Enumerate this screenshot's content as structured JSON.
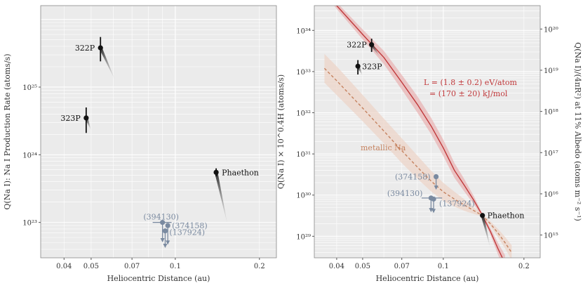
{
  "chart_data": [
    {
      "type": "scatter",
      "xlabel": "Heliocentric Distance (au)",
      "ylabel": "Q(Na I): Na I Production Rate (atoms/s)",
      "xscale": "log",
      "yscale": "log",
      "xlim": [
        0.033,
        0.23
      ],
      "ylim": [
        3e+22,
        1.6e+26
      ],
      "xticks": [
        0.04,
        0.05,
        0.07,
        0.1,
        0.2
      ],
      "xtick_labels": [
        "0.04",
        "0.05",
        "0.07",
        "0.1",
        "0.2"
      ],
      "yticks": [
        1e+23,
        1e+24,
        1e+25
      ],
      "ytick_labels": [
        "10²³",
        "10²⁴",
        "10²⁵"
      ],
      "grid": true,
      "points": [
        {
          "name": "322P",
          "x": 0.054,
          "y": 3.8e+25,
          "ylo": 2.4e+25,
          "yhi": 5.5e+25,
          "tail_x": 0.061,
          "tail_y": 1.25e+25
        },
        {
          "name": "323P",
          "x": 0.048,
          "y": 3.5e+24,
          "ylo": 2.1e+24,
          "yhi": 5e+24,
          "tail_x": 0.05,
          "tail_y": 2.3e+24
        },
        {
          "name": "Phaethon",
          "x": 0.14,
          "y": 5.5e+23,
          "ylo": 4.8e+23,
          "yhi": 6.3e+23,
          "tail_x": 0.154,
          "tail_y": 9e+22
        }
      ],
      "upper_limits": [
        {
          "name": "(394130)",
          "x": 0.09,
          "y": 1e+23,
          "xlo": 0.083,
          "xhi": 0.097,
          "ytip": 5.2e+22
        },
        {
          "name": "(374158)",
          "x": 0.094,
          "y": 9e+22,
          "ytip": 4.8e+22
        },
        {
          "name": "(137924)",
          "x": 0.092,
          "y": 7.5e+22,
          "ytip": 4.3e+22
        }
      ]
    },
    {
      "type": "line",
      "xlabel": "Heliocentric Distance (au)",
      "ylabel": "Q(Na I) × 10^0.4H (atoms/s)",
      "y2label": "Q(Na I)/(4πR²) at 11% Albedo (atoms m⁻² s⁻¹)",
      "xscale": "log",
      "yscale": "log",
      "xlim": [
        0.033,
        0.23
      ],
      "ylim": [
        3e+28,
        4e+34
      ],
      "xticks": [
        0.04,
        0.05,
        0.07,
        0.1,
        0.2
      ],
      "xtick_labels": [
        "0.04",
        "0.05",
        "0.07",
        "0.1",
        "0.2"
      ],
      "yticks": [
        1e+29,
        1e+30,
        1e+31,
        1e+32,
        1e+33,
        1e+34
      ],
      "ytick_labels": [
        "10²⁹",
        "10³⁰",
        "10³¹",
        "10³²",
        "10³³",
        "10³⁴"
      ],
      "y2ticks": [
        1000000000000000.0,
        1e+16,
        1e+17,
        1e+18,
        1e+19,
        1e+20
      ],
      "y2tick_labels": [
        "10¹⁵",
        "10¹⁶",
        "10¹⁷",
        "10¹⁸",
        "10¹⁹",
        "10²⁰"
      ],
      "grid": true,
      "points": [
        {
          "name": "322P",
          "x": 0.054,
          "y": 4.5e+33,
          "ylo": 3e+33,
          "yhi": 6.3e+33,
          "tail_x": 0.058,
          "tail_y": 2.3e+33
        },
        {
          "name": "323P",
          "x": 0.048,
          "y": 1.35e+33,
          "ylo": 8.5e+32,
          "yhi": 1.9e+33,
          "tail_x": 0.05,
          "tail_y": 8e+32
        },
        {
          "name": "Phaethon",
          "x": 0.14,
          "y": 3.2e+29,
          "ylo": 2.8e+29,
          "yhi": 3.6e+29,
          "tail_x": 0.15,
          "tail_y": 5e+28
        }
      ],
      "upper_limits": [
        {
          "name": "(374158)",
          "x": 0.094,
          "y": 2.8e+30,
          "ytip": 1.4e+30
        },
        {
          "name": "(394130)",
          "x": 0.09,
          "y": 8.5e+29,
          "xlo": 0.083,
          "xhi": 0.099,
          "ytip": 4e+29
        },
        {
          "name": "(137924)",
          "x": 0.092,
          "y": 8e+29,
          "ytip": 3.8e+29
        }
      ],
      "series": [
        {
          "name": "L = (1.8 ± 0.2) eV/atom = (170 ± 20) kJ/mol",
          "x": [
            0.033,
            0.04,
            0.05,
            0.06,
            0.07,
            0.08,
            0.09,
            0.1,
            0.11,
            0.12,
            0.13,
            0.14,
            0.15,
            0.16,
            0.17
          ],
          "y": [
            1.9e+35,
            4e+34,
            8e+33,
            2.2e+33,
            5.5e+32,
            1.6e+32,
            4.8e+31,
            1.4e+31,
            4e+30,
            1.7e+30,
            7.5e+29,
            3.2e+29,
            1.3e+29,
            5e+28,
            2.2e+28
          ],
          "band_width_dex": [
            0.05,
            0.08,
            0.12,
            0.16,
            0.18,
            0.2,
            0.2,
            0.2,
            0.18,
            0.15,
            0.1,
            0.04,
            0.08,
            0.14,
            0.2
          ]
        },
        {
          "name": "metallic Na",
          "x": [
            0.036,
            0.04,
            0.05,
            0.06,
            0.07,
            0.08,
            0.09,
            0.1,
            0.11,
            0.12,
            0.13,
            0.14,
            0.15,
            0.16,
            0.17,
            0.18
          ],
          "y": [
            1.2e+33,
            6e+32,
            1.3e+32,
            3.6e+31,
            1.2e+31,
            4.8e+30,
            2.2e+30,
            1.2e+30,
            8e+29,
            5.7e+29,
            4.2e+29,
            3.2e+29,
            2e+29,
            1.2e+29,
            7e+28,
            4e+28
          ],
          "band_width_dex": [
            0.35,
            0.35,
            0.32,
            0.3,
            0.3,
            0.28,
            0.25,
            0.22,
            0.18,
            0.14,
            0.08,
            0.03,
            0.06,
            0.1,
            0.14,
            0.18
          ]
        }
      ],
      "annotations": {
        "L_line1": "L = (1.8 ± 0.2) eV/atom",
        "L_line2": "= (170 ± 20) kJ/mol",
        "metallic": "metallic Na"
      }
    }
  ],
  "left_ylabel_text": "Q(Na I): Na I Production Rate (atoms/s)",
  "right_ylabel_text": "Q(Na I) × 10^0.4H (atoms/s)",
  "right_y2label_text": "Q(Na I)/(4πR²) at 11% Albedo (atoms m⁻² s⁻¹)",
  "xlabel_text": "Heliocentric Distance (au)",
  "colors": {
    "panel_bg": "#ebebeb",
    "grid": "#ffffff",
    "point": "#111111",
    "limit": "#7a8aa0",
    "red": "#c0393b",
    "red_band": "#e7a7a6",
    "tan": "#c5825f",
    "tan_band": "#ecd3c6"
  }
}
